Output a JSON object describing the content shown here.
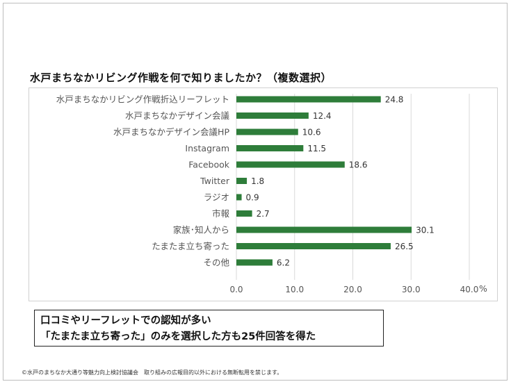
{
  "slide": {
    "title": "水戸まちなかリビング作戦を何で知りましたか？（複数選択）",
    "note_line1": "口コミやリーフレットでの認知が多い",
    "note_line2": "「たまたま立ち寄った」のみを選択した方も25件回答を得た",
    "footer": "©水戸のまちなか大通り等魅力向上検討協議会　取り組みの広報目的以外における無断転用を禁じます。"
  },
  "colors": {
    "bar": "#2e7d3a",
    "grid": "#d9d9d9",
    "axis_text": "#555555",
    "category_text": "#555555",
    "value_text": "#333333"
  },
  "chart_data": {
    "type": "bar",
    "orientation": "horizontal",
    "categories": [
      "水戸まちなかリビング作戦折込リーフレット",
      "水戸まちなかデザイン会議",
      "水戸まちなかデザイン会議HP",
      "Instagram",
      "Facebook",
      "Twitter",
      "ラジオ",
      "市報",
      "家族･知人から",
      "たまたま立ち寄った",
      "その他"
    ],
    "values": [
      24.8,
      12.4,
      10.6,
      11.5,
      18.6,
      1.8,
      0.9,
      2.7,
      30.1,
      26.5,
      6.2
    ],
    "value_labels": [
      "24.8",
      "12.4",
      "10.6",
      "11.5",
      "18.6",
      "1.8",
      "0.9",
      "2.7",
      "30.1",
      "26.5",
      "6.2"
    ],
    "xlim": [
      0,
      40
    ],
    "x_ticks": [
      0,
      10,
      20,
      30,
      40
    ],
    "x_tick_labels": [
      "0.0",
      "10.0",
      "20.0",
      "30.0",
      "40.0"
    ],
    "x_unit": "%",
    "grid": true
  }
}
